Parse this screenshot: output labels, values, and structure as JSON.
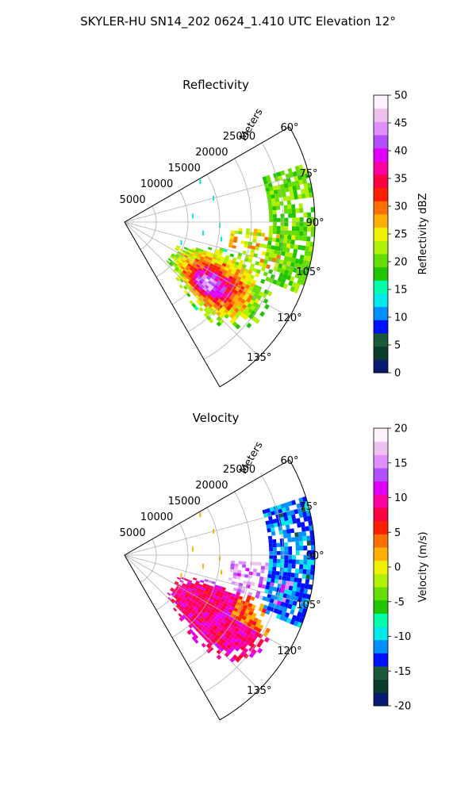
{
  "title": "SKYLER-HU  SN14_202  0624_1.410 UTC Elevation 12°",
  "range_axis_label": "Meters",
  "range_ticks": [
    5000,
    10000,
    15000,
    20000,
    25000
  ],
  "azimuth_ticks": [
    60,
    75,
    90,
    105,
    120,
    135
  ],
  "azimuth_range": [
    60,
    150
  ],
  "range_limits": [
    0,
    30000
  ],
  "grid": true,
  "chart_data": [
    {
      "type": "heatmap",
      "title": "Reflectivity",
      "colorbar_label": "Reflectivity dBZ",
      "colorbar_range": [
        0,
        50
      ],
      "colorbar_ticks": [
        0,
        5,
        10,
        15,
        20,
        25,
        30,
        35,
        40,
        45,
        50
      ],
      "colormap": [
        "#0a1a6e",
        "#0b3b2e",
        "#1a5a3a",
        "#0010ff",
        "#0090ff",
        "#00e8e8",
        "#00ffaa",
        "#20c400",
        "#66dd00",
        "#b0f000",
        "#f0f000",
        "#ffb000",
        "#ff7000",
        "#ff2000",
        "#ff0040",
        "#ff00a0",
        "#e000ff",
        "#b050ff",
        "#e090ff",
        "#f0c0f0",
        "#fff0ff"
      ],
      "approx_values": {
        "clear_air_echoes_far_east": 20,
        "storm_core_south_southeast": 45,
        "storm_body": 35,
        "storm_edges": 20,
        "isolated_near_points": 12
      }
    },
    {
      "type": "heatmap",
      "title": "Velocity",
      "colorbar_label": "Velocity (m/s)",
      "colorbar_range": [
        -20,
        20
      ],
      "colorbar_ticks": [
        -20,
        -15,
        -10,
        -5,
        0,
        5,
        10,
        15,
        20
      ],
      "colormap": [
        "#0a1a6e",
        "#0b3b2e",
        "#1a5a3a",
        "#0010ff",
        "#0090ff",
        "#00e8e8",
        "#00ffaa",
        "#20c400",
        "#66dd00",
        "#b0f000",
        "#f0f000",
        "#ffb000",
        "#ff7000",
        "#ff2000",
        "#ff0040",
        "#ff00a0",
        "#e000ff",
        "#b050ff",
        "#e090ff",
        "#f0c0f0",
        "#fff0ff"
      ],
      "approx_values": {
        "clear_air_echoes_far_east": -12,
        "storm_north_edge": 14,
        "storm_body": 9,
        "storm_inner_band": 4,
        "isolated_near_points": 2
      }
    }
  ]
}
